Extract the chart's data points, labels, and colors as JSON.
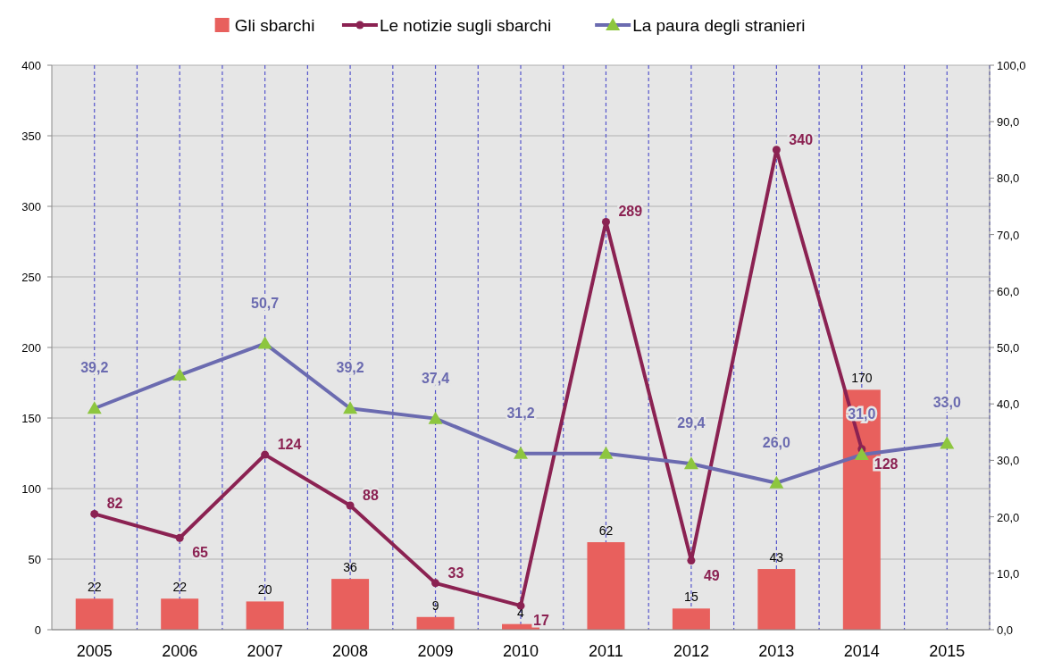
{
  "chart_data": {
    "type": "bar",
    "categories": [
      "2005",
      "2006",
      "2007",
      "2008",
      "2009",
      "2010",
      "2011",
      "2012",
      "2013",
      "2014",
      "2015"
    ],
    "series": [
      {
        "name": "Gli sbarchi",
        "color": "#e8605d",
        "values": [
          22,
          22,
          20,
          36,
          9,
          4,
          62,
          15,
          43,
          170,
          null
        ],
        "value_labels": [
          "22",
          "22",
          "20",
          "36",
          "9",
          "4",
          "62",
          "15",
          "43",
          "170",
          null
        ]
      },
      {
        "name": "Le notizie sugli sbarchi",
        "type": "line",
        "color": "#8b2252",
        "marker": "circle",
        "values": [
          82,
          65,
          124,
          88,
          33,
          17,
          289,
          49,
          340,
          128,
          null
        ],
        "value_labels": [
          "82",
          "65",
          "124",
          "88",
          "33",
          "17",
          "289",
          "49",
          "340",
          "128",
          null
        ]
      },
      {
        "name": "La paura degli stranieri",
        "type": "line",
        "axis": "y2",
        "color": "#6b6bb0",
        "marker": "triangle",
        "values": [
          39.2,
          45.1,
          50.7,
          39.2,
          37.4,
          31.2,
          31.2,
          29.4,
          26.0,
          31.0,
          33.0
        ],
        "value_labels": [
          "39,2",
          null,
          "50,7",
          "39,2",
          "37,4",
          "31,2",
          null,
          "29,4",
          "26,0",
          "31,0",
          "33,0"
        ]
      }
    ],
    "ylim": [
      0,
      400
    ],
    "yticks": [
      0,
      50,
      100,
      150,
      200,
      250,
      300,
      350,
      400
    ],
    "y2lim": [
      0,
      100
    ],
    "y2ticks": [
      {
        "value": 0,
        "label": "0,0"
      },
      {
        "value": 10,
        "label": "10,0"
      },
      {
        "value": 20,
        "label": "20,0"
      },
      {
        "value": 30,
        "label": "30,0"
      },
      {
        "value": 40,
        "label": "40,0"
      },
      {
        "value": 50,
        "label": "50,0"
      },
      {
        "value": 60,
        "label": "60,0"
      },
      {
        "value": 70,
        "label": "70,0"
      },
      {
        "value": 80,
        "label": "80,0"
      },
      {
        "value": 90,
        "label": "90,0"
      },
      {
        "value": 100,
        "label": "100,0"
      }
    ],
    "grid": true,
    "legend": "top"
  }
}
